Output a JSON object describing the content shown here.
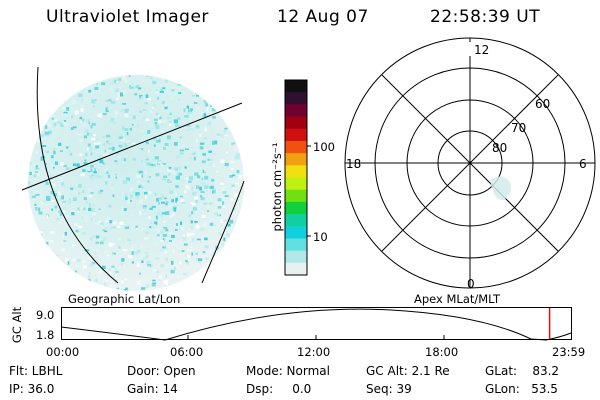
{
  "header": {
    "title": "Ultraviolet Imager",
    "date": "12 Aug 07",
    "time": "22:58:39 UT"
  },
  "colorbar": {
    "unit_label": "photon cm⁻²s⁻¹",
    "ticks": [
      "100",
      "10"
    ],
    "colors": [
      "#101010",
      "#301030",
      "#700030",
      "#a00010",
      "#d01010",
      "#f05010",
      "#f0a010",
      "#f0e010",
      "#c0f010",
      "#70e010",
      "#10d040",
      "#10d0a0",
      "#10d0e0",
      "#60e0e0",
      "#b0e8e8",
      "#e8f0f0"
    ]
  },
  "earth_panel": {
    "caption": "Geographic Lat/Lon"
  },
  "polar_panel": {
    "caption": "Apex MLat/MLT",
    "mlt_labels": {
      "top": "12",
      "left": "18",
      "right": "6",
      "bottom": "0"
    },
    "mlat_labels": [
      "60",
      "70",
      "80"
    ]
  },
  "altitude_plot": {
    "ylabel": "GC Alt",
    "ytick_top": "9.0",
    "ytick_bottom": "1.8",
    "xticks": [
      "00:00",
      "06:00",
      "12:00",
      "18:00",
      "23:59"
    ],
    "current_time_fraction": 0.958
  },
  "info": {
    "flt": "Flt: LBHL",
    "ip": "IP: 36.0",
    "door": "Door: Open",
    "gain": "Gain: 14",
    "mode": "Mode: Normal",
    "dsp": "Dsp:     0.0",
    "gcalt": "GC Alt: 2.1 Re",
    "seq": "Seq: 39",
    "glat": "GLat:    83.2",
    "glon": "GLon:   53.5"
  }
}
